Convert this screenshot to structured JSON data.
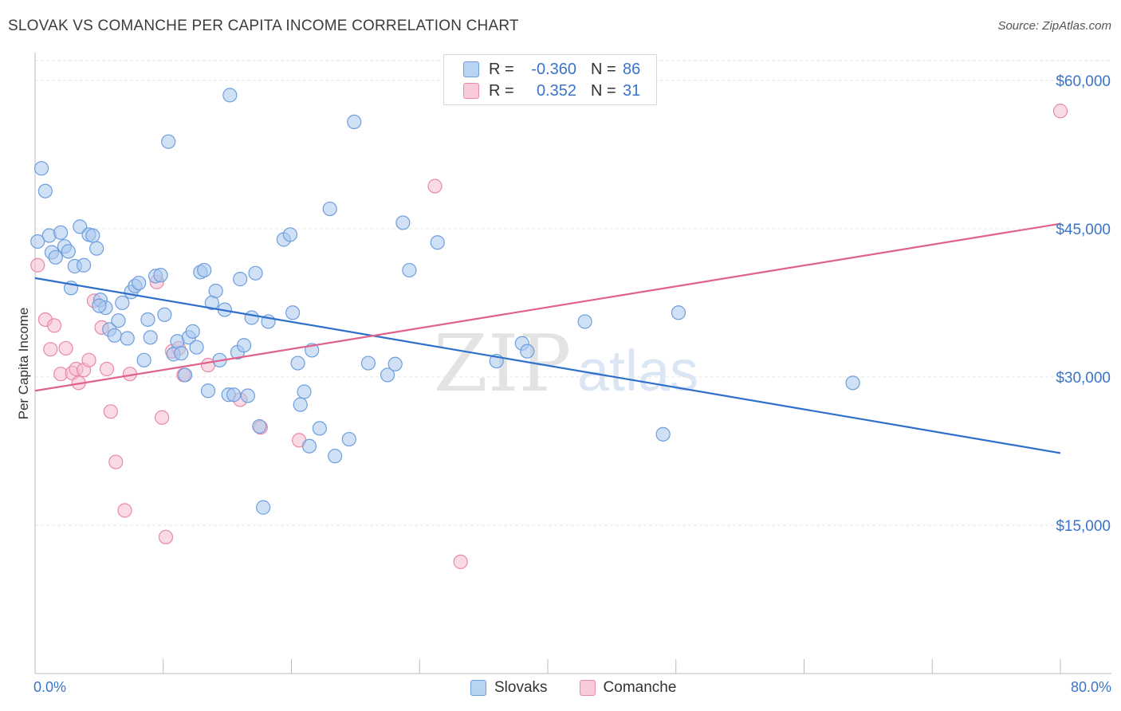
{
  "title": "SLOVAK VS COMANCHE PER CAPITA INCOME CORRELATION CHART",
  "source": "Source: ZipAtlas.com",
  "watermark": {
    "zip": "ZIP",
    "atlas": "atlas"
  },
  "legend": {
    "rows": [
      {
        "r_label": "R =",
        "r_value": "-0.360",
        "n_label": "N =",
        "n_value": "86"
      },
      {
        "r_label": "R =",
        "r_value": "0.352",
        "n_label": "N =",
        "n_value": "31"
      }
    ]
  },
  "bottom_legend": [
    "Slovaks",
    "Comanche"
  ],
  "colors": {
    "slovak_fill": "#a9c8ee",
    "slovak_stroke": "#6d9ede",
    "slovak_line": "#2f6fcc",
    "comanche_fill": "#f6bccd",
    "comanche_stroke": "#e88aa6",
    "comanche_line": "#e0628a",
    "tick_label": "#3a74c9",
    "grid": "#e6e6e6"
  },
  "chart_data": {
    "type": "scatter",
    "title": "SLOVAK VS COMANCHE PER CAPITA INCOME CORRELATION CHART",
    "xlabel": "",
    "ylabel": "Per Capita Income",
    "xlim": [
      0,
      80
    ],
    "ylim": [
      0,
      62000
    ],
    "x_tick_labels": [
      "0.0%",
      "80.0%"
    ],
    "y_ticks": [
      15000,
      30000,
      45000,
      60000
    ],
    "y_tick_labels": [
      "$15,000",
      "$30,000",
      "$45,000",
      "$60,000"
    ],
    "grid": true,
    "legend_position": "top-center",
    "series": [
      {
        "name": "Slovaks",
        "r": -0.36,
        "n": 86,
        "trend": {
          "x0": 0,
          "y0": 40000,
          "x1": 80,
          "y1": 22300
        },
        "points": [
          [
            0.5,
            51100
          ],
          [
            0.8,
            48800
          ],
          [
            1.1,
            44300
          ],
          [
            1.3,
            42600
          ],
          [
            1.6,
            42100
          ],
          [
            2.0,
            44600
          ],
          [
            2.3,
            43200
          ],
          [
            2.6,
            42700
          ],
          [
            2.8,
            39000
          ],
          [
            3.1,
            41200
          ],
          [
            3.5,
            45200
          ],
          [
            3.8,
            41300
          ],
          [
            4.2,
            44400
          ],
          [
            4.5,
            44300
          ],
          [
            4.8,
            43000
          ],
          [
            5.1,
            37800
          ],
          [
            5.5,
            37000
          ],
          [
            5.8,
            34800
          ],
          [
            6.2,
            34200
          ],
          [
            6.5,
            35700
          ],
          [
            6.8,
            37500
          ],
          [
            7.2,
            33900
          ],
          [
            7.5,
            38600
          ],
          [
            7.8,
            39200
          ],
          [
            8.1,
            39500
          ],
          [
            8.5,
            31700
          ],
          [
            8.8,
            35800
          ],
          [
            9.0,
            34000
          ],
          [
            9.4,
            40200
          ],
          [
            9.8,
            40300
          ],
          [
            10.1,
            36300
          ],
          [
            10.4,
            53800
          ],
          [
            10.8,
            32300
          ],
          [
            11.1,
            33600
          ],
          [
            11.4,
            32400
          ],
          [
            11.7,
            30200
          ],
          [
            12.0,
            34000
          ],
          [
            12.3,
            34600
          ],
          [
            12.6,
            33000
          ],
          [
            12.9,
            40600
          ],
          [
            13.2,
            40800
          ],
          [
            13.5,
            28600
          ],
          [
            13.8,
            37500
          ],
          [
            14.1,
            38700
          ],
          [
            14.4,
            31700
          ],
          [
            14.8,
            36800
          ],
          [
            15.1,
            28200
          ],
          [
            15.5,
            28200
          ],
          [
            15.2,
            58500
          ],
          [
            15.8,
            32500
          ],
          [
            16.0,
            39900
          ],
          [
            16.3,
            33200
          ],
          [
            16.6,
            28100
          ],
          [
            16.9,
            36000
          ],
          [
            17.2,
            40500
          ],
          [
            17.5,
            25000
          ],
          [
            17.8,
            16800
          ],
          [
            18.2,
            35600
          ],
          [
            19.4,
            43900
          ],
          [
            19.9,
            44400
          ],
          [
            20.1,
            36500
          ],
          [
            20.5,
            31400
          ],
          [
            20.7,
            27200
          ],
          [
            21.0,
            28500
          ],
          [
            21.4,
            23000
          ],
          [
            21.6,
            32700
          ],
          [
            22.2,
            24800
          ],
          [
            23.0,
            47000
          ],
          [
            23.4,
            22000
          ],
          [
            24.5,
            23700
          ],
          [
            24.9,
            55800
          ],
          [
            26.0,
            31400
          ],
          [
            27.5,
            30200
          ],
          [
            28.1,
            31300
          ],
          [
            28.7,
            45600
          ],
          [
            29.2,
            40800
          ],
          [
            31.4,
            43600
          ],
          [
            36.0,
            31600
          ],
          [
            38.0,
            33400
          ],
          [
            38.4,
            32600
          ],
          [
            42.9,
            35600
          ],
          [
            49.0,
            24200
          ],
          [
            50.2,
            36500
          ],
          [
            63.8,
            29400
          ],
          [
            0.2,
            43700
          ],
          [
            5.0,
            37200
          ]
        ]
      },
      {
        "name": "Comanche",
        "r": 0.352,
        "n": 31,
        "trend": {
          "x0": 0,
          "y0": 28600,
          "x1": 80,
          "y1": 45500
        },
        "points": [
          [
            0.2,
            41300
          ],
          [
            0.8,
            35800
          ],
          [
            1.5,
            35200
          ],
          [
            1.2,
            32800
          ],
          [
            2.0,
            30300
          ],
          [
            2.4,
            32900
          ],
          [
            2.9,
            30400
          ],
          [
            3.2,
            30800
          ],
          [
            3.4,
            29400
          ],
          [
            3.8,
            30700
          ],
          [
            4.2,
            31700
          ],
          [
            4.6,
            37700
          ],
          [
            5.2,
            35000
          ],
          [
            5.6,
            30800
          ],
          [
            5.9,
            26500
          ],
          [
            6.3,
            21400
          ],
          [
            7.0,
            16500
          ],
          [
            7.4,
            30300
          ],
          [
            9.5,
            39600
          ],
          [
            9.9,
            25900
          ],
          [
            10.2,
            13800
          ],
          [
            10.7,
            32600
          ],
          [
            11.6,
            30200
          ],
          [
            13.5,
            31200
          ],
          [
            16.0,
            27700
          ],
          [
            17.6,
            24900
          ],
          [
            20.6,
            23600
          ],
          [
            31.2,
            49300
          ],
          [
            33.2,
            11300
          ],
          [
            80.0,
            56900
          ],
          [
            11.2,
            32900
          ]
        ]
      }
    ]
  }
}
